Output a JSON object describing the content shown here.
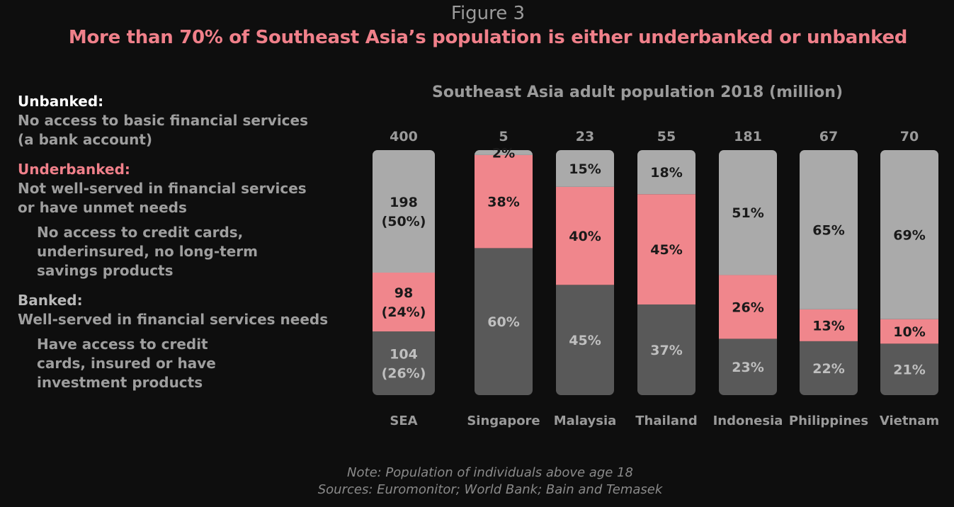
{
  "figure_label": "Figure 3",
  "headline": "More than 70% of Southeast Asia’s population is either underbanked or unbanked",
  "legend": {
    "unbanked": {
      "title": "Unbanked:",
      "desc_1": "No access to basic financial services",
      "desc_2": "(a bank account)"
    },
    "underbanked": {
      "title": "Underbanked:",
      "desc_1": "Not well-served in financial services",
      "desc_2": "or have unmet needs",
      "sub_1": "No access to credit cards,",
      "sub_2": "underinsured, no long-term",
      "sub_3": "savings products"
    },
    "banked": {
      "title": "Banked:",
      "desc_1": "Well-served in financial services needs",
      "sub_1": "Have access to credit",
      "sub_2": "cards, insured or have",
      "sub_3": "investment products"
    }
  },
  "colors": {
    "unbanked": "#aaaaaa",
    "underbanked": "#f0868c",
    "banked": "#595959",
    "background": "#0e0e0e"
  },
  "note": "Note: Population of individuals above age 18",
  "sources": "Sources: Euromonitor; World Bank; Bain and Temasek",
  "chart_data": {
    "type": "bar",
    "stacked": true,
    "normalized": true,
    "title": "Southeast Asia adult population 2018 (million)",
    "categories": [
      "SEA",
      "Singapore",
      "Malaysia",
      "Thailand",
      "Indonesia",
      "Philippines",
      "Vietnam"
    ],
    "totals": [
      "400",
      "5",
      "23",
      "55",
      "181",
      "67",
      "70"
    ],
    "series": [
      {
        "name": "Banked",
        "values": [
          26,
          60,
          45,
          37,
          23,
          22,
          21
        ],
        "labels": [
          [
            "104",
            "(26%)"
          ],
          [
            "60%"
          ],
          [
            "45%"
          ],
          [
            "37%"
          ],
          [
            "23%"
          ],
          [
            "22%"
          ],
          [
            "21%"
          ]
        ]
      },
      {
        "name": "Underbanked",
        "values": [
          24,
          38,
          40,
          45,
          26,
          13,
          10
        ],
        "labels": [
          [
            "98",
            "(24%)"
          ],
          [
            "38%"
          ],
          [
            "40%"
          ],
          [
            "45%"
          ],
          [
            "26%"
          ],
          [
            "13%"
          ],
          [
            "10%"
          ]
        ]
      },
      {
        "name": "Unbanked",
        "values": [
          50,
          2,
          15,
          18,
          51,
          65,
          69
        ],
        "labels": [
          [
            "198",
            "(50%)"
          ],
          [
            "2%"
          ],
          [
            "15%"
          ],
          [
            "18%"
          ],
          [
            "51%"
          ],
          [
            "65%"
          ],
          [
            "69%"
          ]
        ]
      }
    ],
    "ylim": [
      0,
      100
    ]
  }
}
